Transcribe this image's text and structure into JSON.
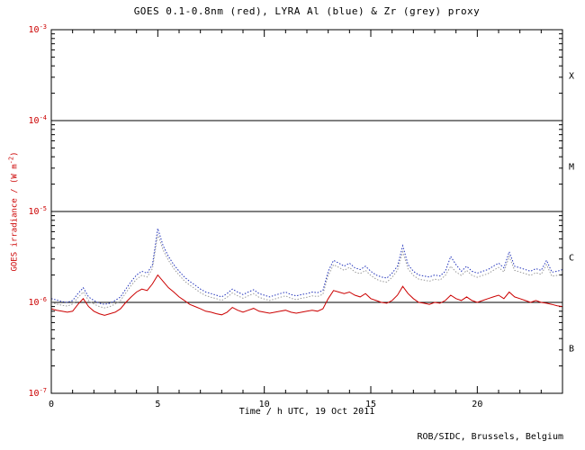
{
  "footer": "ROB/SIDC, Brussels, Belgium",
  "chart_data": {
    "type": "line",
    "title": "GOES 0.1-0.8nm (red), LYRA Al (blue) & Zr (grey) proxy",
    "xlabel": "Time / h UTC, 19 Oct 2011",
    "ylabel": "GOES irradiance / (W m^-2)",
    "ylabel_parts": {
      "pre": "GOES irradiance / (W m",
      "sup": "-2",
      "post": ")"
    },
    "xlim": [
      0,
      24
    ],
    "ylim_log10": [
      -7,
      -3
    ],
    "x_ticks_major": [
      0,
      5,
      10,
      15,
      20
    ],
    "x_minor_step": 1,
    "y_tick_base": "10",
    "y_ticks": [
      {
        "value": 0.001,
        "exp": "-3"
      },
      {
        "value": 0.0001,
        "exp": "-4"
      },
      {
        "value": 1e-05,
        "exp": "-5"
      },
      {
        "value": 1e-06,
        "exp": "-6"
      },
      {
        "value": 1e-07,
        "exp": "-7"
      }
    ],
    "hlines": [
      0.0001,
      1e-05,
      1e-06
    ],
    "flare_classes": [
      {
        "label": "X",
        "log10_center": -3.5
      },
      {
        "label": "M",
        "log10_center": -4.5
      },
      {
        "label": "C",
        "log10_center": -5.5
      },
      {
        "label": "B",
        "log10_center": -6.5
      }
    ],
    "grid": false,
    "legend_position": "in-title",
    "units": "W m^-2",
    "value_scale": 1e-06,
    "x_hours": {
      "start": 0,
      "step": 0.25,
      "end": 24
    },
    "colors": {
      "red_series": "#cc0000",
      "blue_series": "#2233bb",
      "grey_series": "#9a9a9a",
      "axis_label": "#cc0000",
      "frame": "#000000"
    },
    "series": [
      {
        "id": "goes",
        "name": "GOES 0.1-0.8nm",
        "color": "#cc0000",
        "style": "solid",
        "values": [
          0.85,
          0.82,
          0.8,
          0.78,
          0.8,
          0.95,
          1.1,
          0.9,
          0.8,
          0.75,
          0.72,
          0.75,
          0.78,
          0.85,
          1.0,
          1.15,
          1.3,
          1.4,
          1.35,
          1.6,
          2.0,
          1.7,
          1.45,
          1.3,
          1.15,
          1.05,
          0.95,
          0.9,
          0.85,
          0.8,
          0.78,
          0.75,
          0.73,
          0.78,
          0.88,
          0.82,
          0.78,
          0.82,
          0.86,
          0.8,
          0.78,
          0.76,
          0.78,
          0.8,
          0.82,
          0.78,
          0.76,
          0.78,
          0.8,
          0.82,
          0.8,
          0.85,
          1.1,
          1.35,
          1.3,
          1.25,
          1.3,
          1.2,
          1.15,
          1.25,
          1.1,
          1.05,
          1.0,
          0.98,
          1.05,
          1.2,
          1.5,
          1.25,
          1.1,
          1.0,
          0.98,
          0.95,
          1.0,
          0.98,
          1.05,
          1.2,
          1.1,
          1.05,
          1.15,
          1.05,
          1.0,
          1.05,
          1.1,
          1.15,
          1.2,
          1.1,
          1.3,
          1.15,
          1.1,
          1.05,
          1.0,
          1.05,
          1.0,
          0.98,
          0.95,
          0.92,
          0.9
        ]
      },
      {
        "id": "lyra-al",
        "name": "LYRA Al proxy",
        "color": "#2233bb",
        "style": "dotted",
        "values": [
          1.1,
          1.06,
          1.02,
          1.0,
          1.05,
          1.25,
          1.45,
          1.15,
          1.05,
          0.98,
          0.95,
          0.98,
          1.05,
          1.15,
          1.4,
          1.7,
          2.0,
          2.2,
          2.1,
          2.6,
          6.5,
          4.2,
          3.2,
          2.6,
          2.2,
          1.9,
          1.7,
          1.55,
          1.4,
          1.3,
          1.25,
          1.2,
          1.15,
          1.25,
          1.4,
          1.3,
          1.22,
          1.3,
          1.38,
          1.25,
          1.2,
          1.15,
          1.2,
          1.25,
          1.3,
          1.22,
          1.18,
          1.22,
          1.25,
          1.3,
          1.28,
          1.35,
          2.2,
          2.9,
          2.7,
          2.5,
          2.7,
          2.4,
          2.3,
          2.5,
          2.2,
          2.0,
          1.9,
          1.85,
          2.1,
          2.5,
          4.2,
          2.6,
          2.2,
          2.0,
          1.95,
          1.9,
          2.0,
          1.95,
          2.2,
          3.2,
          2.6,
          2.2,
          2.5,
          2.2,
          2.1,
          2.2,
          2.3,
          2.5,
          2.7,
          2.4,
          3.6,
          2.5,
          2.4,
          2.3,
          2.2,
          2.35,
          2.25,
          2.9,
          2.15,
          2.2,
          2.3
        ]
      },
      {
        "id": "lyra-zr",
        "name": "LYRA Zr proxy",
        "color": "#9a9a9a",
        "style": "dotted",
        "values": [
          1.0,
          0.96,
          0.93,
          0.91,
          0.96,
          1.13,
          1.3,
          1.05,
          0.96,
          0.9,
          0.87,
          0.9,
          0.96,
          1.05,
          1.27,
          1.54,
          1.8,
          1.98,
          1.9,
          2.35,
          5.6,
          3.75,
          2.9,
          2.35,
          2.0,
          1.72,
          1.55,
          1.41,
          1.28,
          1.19,
          1.14,
          1.1,
          1.05,
          1.14,
          1.27,
          1.18,
          1.11,
          1.18,
          1.25,
          1.14,
          1.09,
          1.05,
          1.09,
          1.14,
          1.18,
          1.11,
          1.07,
          1.11,
          1.14,
          1.18,
          1.16,
          1.23,
          1.98,
          2.6,
          2.43,
          2.25,
          2.43,
          2.16,
          2.07,
          2.25,
          1.98,
          1.8,
          1.71,
          1.67,
          1.89,
          2.25,
          3.6,
          2.34,
          1.98,
          1.8,
          1.76,
          1.71,
          1.8,
          1.76,
          1.98,
          2.5,
          2.16,
          1.98,
          2.25,
          1.98,
          1.89,
          1.98,
          2.07,
          2.25,
          2.43,
          2.16,
          3.2,
          2.25,
          2.16,
          2.07,
          1.98,
          2.12,
          2.03,
          2.6,
          1.94,
          1.98,
          2.07
        ]
      }
    ]
  }
}
